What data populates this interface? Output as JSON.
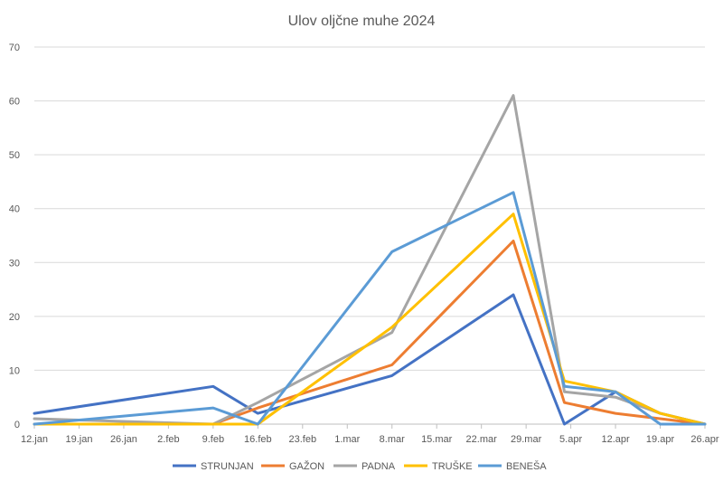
{
  "chart_data": {
    "type": "line",
    "title": "Ulov oljčne muhe 2024",
    "xlabel": "",
    "ylabel": "",
    "x_ticks": [
      "12.jan",
      "19.jan",
      "26.jan",
      "2.feb",
      "9.feb",
      "16.feb",
      "23.feb",
      "1.mar",
      "8.mar",
      "15.mar",
      "22.mar",
      "29.mar",
      "5.apr",
      "12.apr",
      "19.apr",
      "26.apr"
    ],
    "ylim": [
      0,
      70
    ],
    "y_ticks": [
      0,
      10,
      20,
      30,
      40,
      50,
      60,
      70
    ],
    "grid": "horizontal",
    "legend_position": "bottom",
    "series": [
      {
        "name": "STRUNJAN",
        "color": "#4472C4",
        "points": [
          [
            "12.jan",
            2
          ],
          [
            "9.feb",
            7
          ],
          [
            "16.feb",
            2
          ],
          [
            "8.mar",
            9
          ],
          [
            "27.mar",
            24
          ],
          [
            "4.apr",
            0
          ],
          [
            "12.apr",
            6
          ],
          [
            "19.apr",
            2
          ],
          [
            "26.apr",
            0
          ]
        ]
      },
      {
        "name": "GAŽON",
        "color": "#ED7D31",
        "points": [
          [
            "12.jan",
            0
          ],
          [
            "9.feb",
            0
          ],
          [
            "16.feb",
            3
          ],
          [
            "8.mar",
            11
          ],
          [
            "27.mar",
            34
          ],
          [
            "4.apr",
            4
          ],
          [
            "12.apr",
            2
          ],
          [
            "19.apr",
            1
          ],
          [
            "26.apr",
            0
          ]
        ]
      },
      {
        "name": "PADNA",
        "color": "#A5A5A5",
        "points": [
          [
            "12.jan",
            1
          ],
          [
            "9.feb",
            0
          ],
          [
            "16.feb",
            4
          ],
          [
            "8.mar",
            17
          ],
          [
            "27.mar",
            61
          ],
          [
            "4.apr",
            6
          ],
          [
            "12.apr",
            5
          ],
          [
            "19.apr",
            2
          ],
          [
            "26.apr",
            0
          ]
        ]
      },
      {
        "name": "TRUŠKE",
        "color": "#FFC000",
        "points": [
          [
            "12.jan",
            0
          ],
          [
            "9.feb",
            0
          ],
          [
            "16.feb",
            0
          ],
          [
            "8.mar",
            18
          ],
          [
            "27.mar",
            39
          ],
          [
            "4.apr",
            8
          ],
          [
            "12.apr",
            6
          ],
          [
            "19.apr",
            2
          ],
          [
            "26.apr",
            0
          ]
        ]
      },
      {
        "name": "BENEŠA",
        "color": "#5B9BD5",
        "points": [
          [
            "12.jan",
            0
          ],
          [
            "9.feb",
            3
          ],
          [
            "16.feb",
            0
          ],
          [
            "8.mar",
            32
          ],
          [
            "27.mar",
            43
          ],
          [
            "4.apr",
            7
          ],
          [
            "12.apr",
            6
          ],
          [
            "19.apr",
            0
          ],
          [
            "26.apr",
            0
          ]
        ]
      }
    ]
  }
}
